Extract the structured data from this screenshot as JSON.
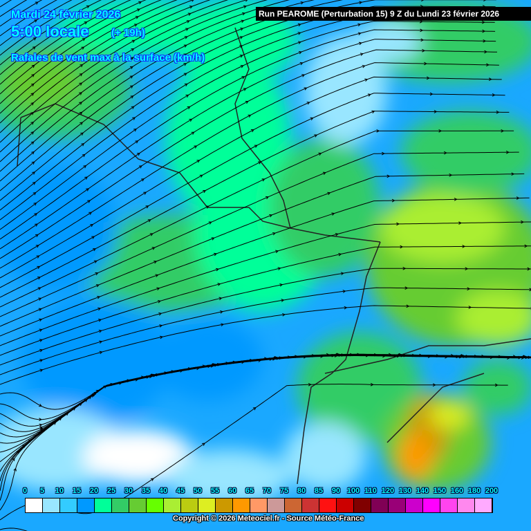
{
  "header": {
    "date": "Mardi 24 février 2026",
    "hour": "5:00 locale",
    "lead": "(+ 19h)",
    "parameter": "Rafales de vent max à la surface (km/h)",
    "run": "Run PEAROME (Perturbation 15) 9 Z du Lundi 23 février 2026"
  },
  "legend": {
    "labels": [
      "0",
      "5",
      "10",
      "15",
      "20",
      "25",
      "30",
      "35",
      "40",
      "45",
      "50",
      "55",
      "60",
      "65",
      "70",
      "75",
      "80",
      "85",
      "90",
      "100",
      "110",
      "120",
      "130",
      "140",
      "150",
      "160",
      "180",
      "200"
    ],
    "colors": [
      "#ffffff",
      "#99e6ff",
      "#33ccff",
      "#0099ff",
      "#00ff99",
      "#33cc66",
      "#66cc33",
      "#66ff00",
      "#aaee33",
      "#bbcc11",
      "#ddee22",
      "#cc9900",
      "#ff9900",
      "#ff9966",
      "#cc9999",
      "#cc6633",
      "#cc3333",
      "#ff1111",
      "#cc0000",
      "#800000",
      "#800055",
      "#990077",
      "#cc00cc",
      "#ff00ff",
      "#ff44ee",
      "#ff88ee",
      "#ffaaff",
      "#ffffff"
    ]
  },
  "copyright": "Copyright © 2026 Meteociel.fr - Source Météo-France"
}
